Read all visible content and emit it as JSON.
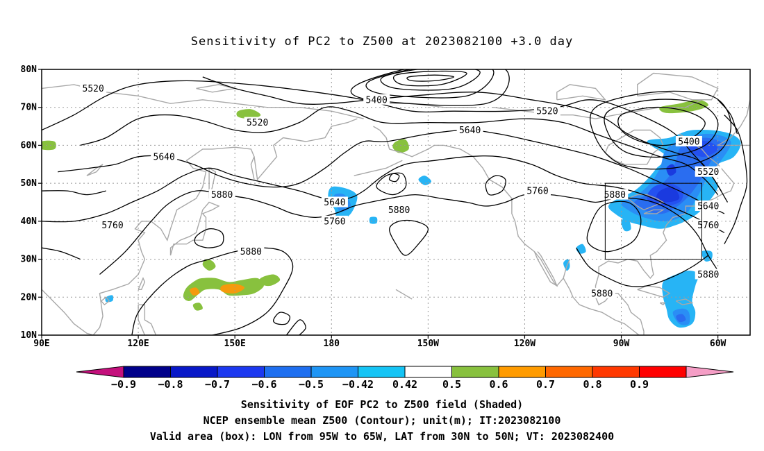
{
  "title": "Sensitivity of PC2 to Z500 at 2023082100 +3.0 day",
  "footer": {
    "line1": "Sensitivity of EOF PC2 to Z500 field (Shaded)",
    "line2": "NCEP ensemble mean Z500 (Contour); unit(m); IT:2023082100",
    "line3": "Valid area (box): LON from 95W to 65W, LAT from 30N to 50N; VT: 2023082400"
  },
  "map": {
    "lon_range": [
      90,
      310
    ],
    "lat_range": [
      10,
      80
    ],
    "lat_ticks": [
      {
        "v": 10,
        "label": "10N"
      },
      {
        "v": 20,
        "label": "20N"
      },
      {
        "v": 30,
        "label": "30N"
      },
      {
        "v": 40,
        "label": "40N"
      },
      {
        "v": 50,
        "label": "50N"
      },
      {
        "v": 60,
        "label": "60N"
      },
      {
        "v": 70,
        "label": "70N"
      },
      {
        "v": 80,
        "label": "80N"
      }
    ],
    "lon_ticks": [
      {
        "v": 90,
        "label": "90E"
      },
      {
        "v": 120,
        "label": "120E"
      },
      {
        "v": 150,
        "label": "150E"
      },
      {
        "v": 180,
        "label": "180"
      },
      {
        "v": 210,
        "label": "150W"
      },
      {
        "v": 240,
        "label": "120W"
      },
      {
        "v": 270,
        "label": "90W"
      },
      {
        "v": 300,
        "label": "60W"
      }
    ],
    "valid_box": {
      "lon": [
        265,
        295
      ],
      "lat": [
        30,
        50
      ]
    },
    "contour_labels": [
      {
        "text": "5520",
        "lon": 106,
        "lat": 75
      },
      {
        "text": "5400",
        "lon": 194,
        "lat": 72
      },
      {
        "text": "5520",
        "lon": 247,
        "lat": 69
      },
      {
        "text": "5520",
        "lon": 157,
        "lat": 66
      },
      {
        "text": "5640",
        "lon": 223,
        "lat": 64
      },
      {
        "text": "5400",
        "lon": 291,
        "lat": 61
      },
      {
        "text": "5640",
        "lon": 128,
        "lat": 57
      },
      {
        "text": "5520",
        "lon": 297,
        "lat": 53
      },
      {
        "text": "5880",
        "lon": 146,
        "lat": 47
      },
      {
        "text": "5880",
        "lon": 268,
        "lat": 47
      },
      {
        "text": "5760",
        "lon": 244,
        "lat": 48
      },
      {
        "text": "5640",
        "lon": 181,
        "lat": 45
      },
      {
        "text": "5640",
        "lon": 297,
        "lat": 44
      },
      {
        "text": "5880",
        "lon": 201,
        "lat": 43
      },
      {
        "text": "5760",
        "lon": 112,
        "lat": 39
      },
      {
        "text": "5760",
        "lon": 181,
        "lat": 40
      },
      {
        "text": "5760",
        "lon": 297,
        "lat": 39
      },
      {
        "text": "5880",
        "lon": 155,
        "lat": 32
      },
      {
        "text": "5880",
        "lon": 297,
        "lat": 26
      },
      {
        "text": "5880",
        "lon": 264,
        "lat": 21
      }
    ],
    "shading_colors": {
      "neg_0.9": "#2020b0",
      "neg_0.8": "#1a3adf",
      "neg_0.7": "#2451f0",
      "neg_0.6": "#2a6df0",
      "neg_0.5": "#2a8ef5",
      "neg_0.42": "#27b4f5",
      "pos_0.42": "#88c13e",
      "pos_0.5": "#f59a0c"
    }
  },
  "colorbar": {
    "labels": [
      "-0.9",
      "-0.8",
      "-0.7",
      "-0.6",
      "-0.5",
      "-0.42",
      "0.42",
      "0.5",
      "0.6",
      "0.7",
      "0.8",
      "0.9"
    ],
    "colors": [
      "#c4107c",
      "#00008a",
      "#0818c8",
      "#1c38f0",
      "#1e6ff0",
      "#1e95f5",
      "#15c4f5",
      "#ffffff",
      "#88c13e",
      "#ff9b00",
      "#ff6800",
      "#ff3800",
      "#ff0000",
      "#f59ec6"
    ]
  }
}
